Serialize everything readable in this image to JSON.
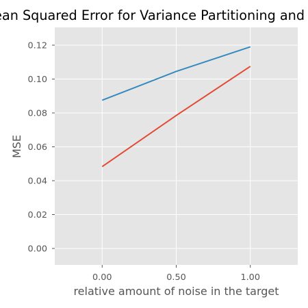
{
  "chart_data": {
    "type": "line",
    "title": "Mean Squared Error for Variance Partitioning and Re",
    "xlabel": "relative amount of noise in the target",
    "ylabel": "MSE",
    "x": [
      0,
      0.5,
      1.0
    ],
    "series": [
      {
        "values": [
          0.0875,
          0.1045,
          0.119
        ],
        "color": "#348ABD"
      },
      {
        "values": [
          0.0483,
          0.0785,
          0.1075
        ],
        "color": "#E24A33"
      }
    ],
    "xlim": [
      -0.32,
      1.32
    ],
    "ylim": [
      -0.0097,
      0.1305
    ],
    "x_ticks": [
      0,
      0.5,
      1.0
    ],
    "x_tick_labels": [
      "0.00",
      "0.50",
      "1.00"
    ],
    "y_ticks": [
      0,
      0.02,
      0.04,
      0.06,
      0.08,
      0.1,
      0.12
    ],
    "y_tick_labels": [
      "0.00",
      "0.02",
      "0.04",
      "0.06",
      "0.08",
      "0.10",
      "0.12"
    ],
    "grid": true,
    "legend": false,
    "style": "ggplot",
    "background_color": "#E5E5E5",
    "grid_color": "#FFFFFF",
    "tick_color": "#555555"
  }
}
